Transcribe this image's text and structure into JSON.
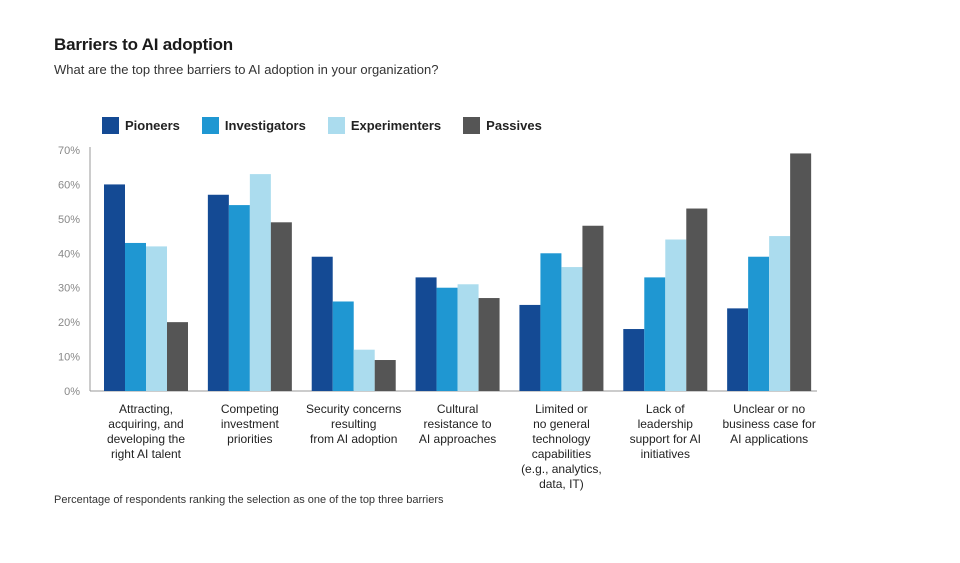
{
  "chart_data": {
    "type": "bar",
    "title": "Barriers to AI adoption",
    "subtitle": "What are the top three barriers to AI adoption in your organization?",
    "footnote": "Percentage of respondents ranking the selection as one of the top three barriers",
    "categories": [
      [
        "Attracting,",
        "acquiring, and",
        "developing the",
        "right AI talent"
      ],
      [
        "Competing",
        "investment",
        "priorities"
      ],
      [
        "Security concerns",
        "resulting",
        "from AI adoption"
      ],
      [
        "Cultural",
        "resistance to",
        "AI approaches"
      ],
      [
        "Limited or",
        "no general",
        "technology",
        "capabilities",
        "(e.g., analytics,",
        "data, IT)"
      ],
      [
        "Lack of",
        "leadership",
        "support for AI",
        "initiatives"
      ],
      [
        "Unclear or no",
        "business case for",
        "AI applications"
      ]
    ],
    "series": [
      {
        "name": "Pioneers",
        "color": "#144a94",
        "values": [
          60,
          57,
          39,
          33,
          25,
          18,
          24
        ]
      },
      {
        "name": "Investigators",
        "color": "#1f97d2",
        "values": [
          43,
          54,
          26,
          30,
          40,
          33,
          39
        ]
      },
      {
        "name": "Experimenters",
        "color": "#abdcee",
        "values": [
          42,
          63,
          12,
          31,
          36,
          44,
          45
        ]
      },
      {
        "name": "Passives",
        "color": "#555555",
        "values": [
          20,
          49,
          9,
          27,
          48,
          53,
          69
        ]
      }
    ],
    "y_ticks": [
      "0%",
      "10%",
      "20%",
      "30%",
      "40%",
      "50%",
      "60%",
      "70%"
    ],
    "ylim": [
      0,
      70
    ],
    "legend_position": "top-left",
    "grid": false
  }
}
